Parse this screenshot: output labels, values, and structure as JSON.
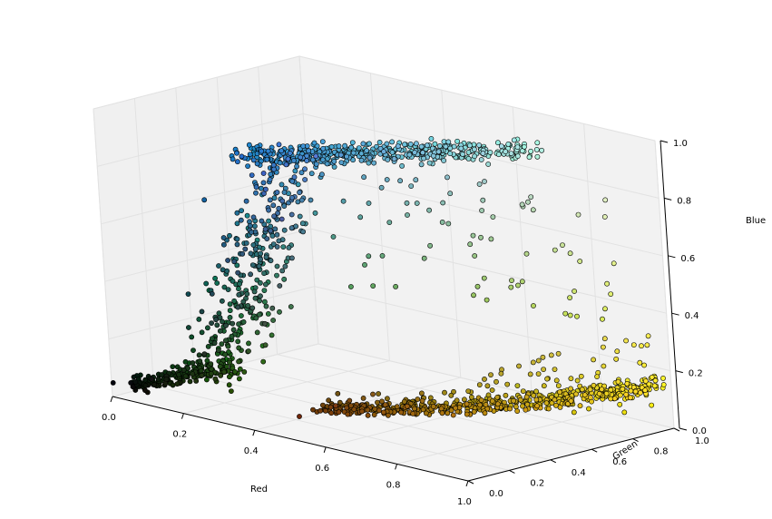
{
  "chart_data": {
    "type": "scatter",
    "title": "",
    "xlabel": "Red",
    "ylabel": "Green",
    "zlabel": "Blue",
    "xlim": [
      0.0,
      1.0
    ],
    "ylim": [
      0.0,
      1.0
    ],
    "zlim": [
      0.0,
      1.0
    ],
    "x_ticks": [
      "0.0",
      "0.2",
      "0.4",
      "0.6",
      "0.8",
      "1.0"
    ],
    "y_ticks": [
      "0.0",
      "0.2",
      "0.4",
      "0.6",
      "0.8",
      "1.0"
    ],
    "z_ticks": [
      "0.0",
      "0.2",
      "0.4",
      "0.6",
      "0.8",
      "1.0"
    ],
    "grid": true,
    "legend": "none",
    "marker_edge_color": "#000000",
    "point_color_rule": "each point is filled with its own (Red, Green, Blue) value",
    "clusters": [
      {
        "label": "dark-start",
        "red": [
          0.0,
          0.12
        ],
        "green": [
          0.05,
          0.3
        ],
        "blue": [
          0.0,
          0.15
        ]
      },
      {
        "label": "orange-yellow-band",
        "red": [
          0.45,
          1.0
        ],
        "green": [
          0.25,
          0.95
        ],
        "blue": [
          0.0,
          0.35
        ]
      },
      {
        "label": "blue-band",
        "red": [
          0.1,
          0.7
        ],
        "green": [
          0.45,
          0.95
        ],
        "blue": [
          0.75,
          0.9
        ]
      },
      {
        "label": "vertical-transition",
        "red": [
          0.05,
          0.35
        ],
        "green": [
          0.35,
          0.55
        ],
        "blue": [
          0.2,
          0.75
        ]
      }
    ]
  }
}
